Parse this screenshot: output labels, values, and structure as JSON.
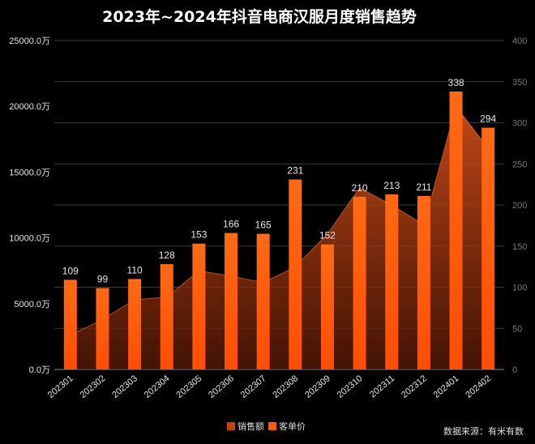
{
  "chart_data": {
    "type": "bar",
    "title": "2023年~2024年抖音电商汉服月度销售趋势",
    "categories": [
      "202301",
      "202302",
      "202303",
      "202304",
      "202305",
      "202306",
      "202307",
      "202308",
      "202309",
      "202310",
      "202311",
      "202312",
      "202401",
      "202402"
    ],
    "series": [
      {
        "name": "销售额",
        "type": "area",
        "axis": "left",
        "color": "#c4420f",
        "values": [
          2600,
          3800,
          5300,
          5500,
          7500,
          7100,
          6600,
          7800,
          10300,
          13800,
          12500,
          11000,
          20000,
          16800
        ]
      },
      {
        "name": "客单价",
        "type": "bar",
        "axis": "right",
        "color": "#ff5a0a",
        "values": [
          109,
          99,
          110,
          128,
          153,
          166,
          165,
          231,
          152,
          210,
          213,
          211,
          338,
          294
        ]
      }
    ],
    "y_left": {
      "min": 0,
      "max": 25000,
      "step": 5000,
      "ticks": [
        "0.0万",
        "5000.0万",
        "10000.0万",
        "15000.0万",
        "20000.0万",
        "25000.0万"
      ]
    },
    "y_right": {
      "min": 0,
      "max": 400,
      "step": 50,
      "ticks": [
        "0",
        "50",
        "100",
        "150",
        "200",
        "250",
        "300",
        "350",
        "400"
      ]
    },
    "legend": [
      "销售额",
      "客单价"
    ],
    "legend_position": "bottom",
    "source": "数据来源：有米有数",
    "grid": true
  }
}
